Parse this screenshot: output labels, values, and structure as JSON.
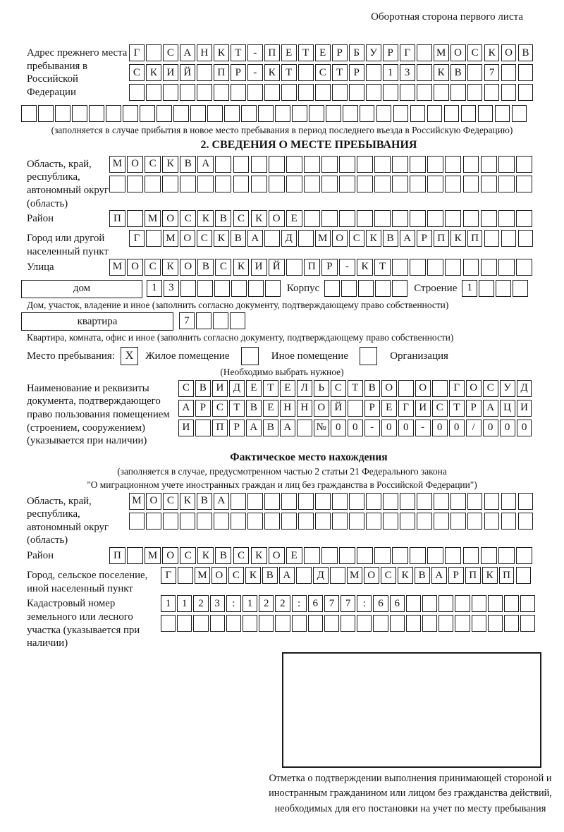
{
  "header": {
    "note": "Оборотная сторона первого листа"
  },
  "prev_address": {
    "label": "Адрес прежнего места пребывания в Российской Федерации",
    "row1": {
      "t": "Г САНКТ-ПЕТЕРБУРГ МОСКОВ",
      "n": 24
    },
    "row2": {
      "t": "СКИЙ ПР-КТ СТР 13 КВ 7",
      "n": 24
    },
    "row3": {
      "t": "",
      "n": 24
    },
    "row4": {
      "t": "",
      "n": 30
    },
    "note": "(заполняется в случае прибытия в новое место пребывания в период последнего въезда в Российскую Федерацию)"
  },
  "section2": {
    "title": "2. СВЕДЕНИЯ О МЕСТЕ ПРЕБЫВАНИЯ",
    "region": {
      "label": "Область, край, республика, автономный округ (область)",
      "row1": {
        "t": "МОСКВА",
        "n": 24
      },
      "row2": {
        "t": "",
        "n": 24
      }
    },
    "district": {
      "label": "Район",
      "row": {
        "t": "П МОСКВСКОЕ",
        "n": 24
      }
    },
    "city": {
      "label": "Город или другой населенный пункт",
      "row": {
        "t": "Г МОСКВА Д МОСКВАРПКП",
        "n": 24
      }
    },
    "street": {
      "label": "Улица",
      "row": {
        "t": "МОСКОВСКИЙ ПР-КТ",
        "n": 24
      }
    },
    "house": {
      "box_label": "дом",
      "cells": {
        "t": "13",
        "n": 8
      },
      "korpus_label": "Корпус",
      "korpus_cells": {
        "t": "",
        "n": 5
      },
      "stroenie_label": "Строение",
      "stroenie_cells": {
        "t": "1",
        "n": 4
      },
      "note": "Дом, участок, владение и иное (заполнить согласно документу, подтверждающему право собственности)"
    },
    "apartment": {
      "box_label": "квартира",
      "cells": {
        "t": "7",
        "n": 4
      },
      "note": "Квартира, комната, офис и иное (заполнить согласно документу, подтверждающему право собственности)"
    },
    "stay_type": {
      "label": "Место пребывания:",
      "cb1": {
        "t": "X",
        "n": 1
      },
      "opt1": "Жилое помещение",
      "cb2": {
        "t": "",
        "n": 1
      },
      "opt2": "Иное помещение",
      "cb3": {
        "t": "",
        "n": 1
      },
      "opt3": "Организация",
      "note": "(Необходимо выбрать нужное)"
    },
    "document": {
      "label": "Наименование и реквизиты документа, подтверждающего право пользования помещением (строением, сооружением) (указывается при наличии)",
      "row1": {
        "t": "СВИДЕТЕЛЬСТВО О ГОСУД",
        "n": 21
      },
      "row2": {
        "t": "АРСТВЕННОЙ РЕГИСТРАЦИ",
        "n": 21
      },
      "row3": {
        "t": "И ПРАВА №00-00-00/000",
        "n": 21
      }
    }
  },
  "actual_location": {
    "title": "Фактическое место нахождения",
    "note1": "(заполняется в случае, предусмотренном частью 2 статьи 21 Федерального закона",
    "note2": "\"О миграционном учете иностранных граждан и лиц без гражданства в Российской Федерации\")",
    "region": {
      "label": "Область, край, республика, автономный округ (область)",
      "row1": {
        "t": "МОСКВА",
        "n": 24
      },
      "row2": {
        "t": "",
        "n": 24
      }
    },
    "district": {
      "label": "Район",
      "row": {
        "t": "П МОСКВСКОЕ",
        "n": 24
      }
    },
    "city": {
      "label": "Город, сельское поселение, иной населенный пункт",
      "row": {
        "t": "Г МОСКВА Д МОСКВАРПКП",
        "n": 22
      }
    },
    "cadastral": {
      "label": "Кадастровый номер земельного или лесного участка (указывается при наличии)",
      "row1": {
        "t": "1123:122:677:66",
        "n": 23
      },
      "row2": {
        "t": "",
        "n": 23
      }
    }
  },
  "stamp": {
    "caption": "Отметка о подтверждении выполнения принимающей стороной и иностранным гражданином или лицом без гражданства действий, необходимых для его постановки на учет по месту пребывания"
  }
}
